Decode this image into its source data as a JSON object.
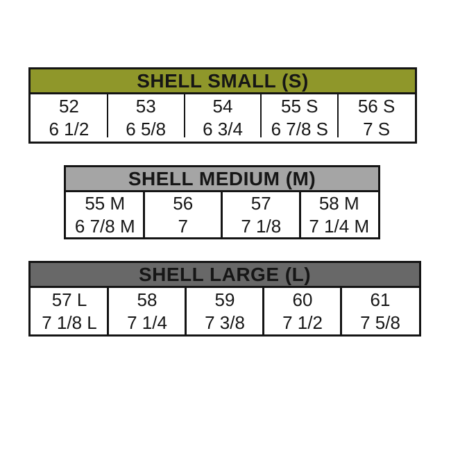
{
  "page": {
    "background_color": "#ffffff",
    "text_color": "#161616",
    "border_color": "#141414"
  },
  "chart_data": [
    {
      "type": "table",
      "title": "SHELL SMALL (S)",
      "header_color": "#8f972a",
      "row_labels": [
        "shell_size",
        "hat_size"
      ],
      "rows": [
        [
          "52",
          "53",
          "54",
          "55 S",
          "56 S"
        ],
        [
          "6 1/2",
          "6 5/8",
          "6 3/4",
          "6 7/8 S",
          "7 S"
        ]
      ]
    },
    {
      "type": "table",
      "title": "SHELL MEDIUM (M)",
      "header_color": "#a5a5a5",
      "row_labels": [
        "shell_size",
        "hat_size"
      ],
      "rows": [
        [
          "55 M",
          "56",
          "57",
          "58 M"
        ],
        [
          "6 7/8 M",
          "7",
          "7 1/8",
          "7 1/4 M"
        ]
      ]
    },
    {
      "type": "table",
      "title": "SHELL LARGE (L)",
      "header_color": "#686868",
      "row_labels": [
        "shell_size",
        "hat_size"
      ],
      "rows": [
        [
          "57 L",
          "58",
          "59",
          "60",
          "61"
        ],
        [
          "7 1/8 L",
          "7 1/4",
          "7 3/8",
          "7 1/2",
          "7 5/8"
        ]
      ]
    }
  ]
}
